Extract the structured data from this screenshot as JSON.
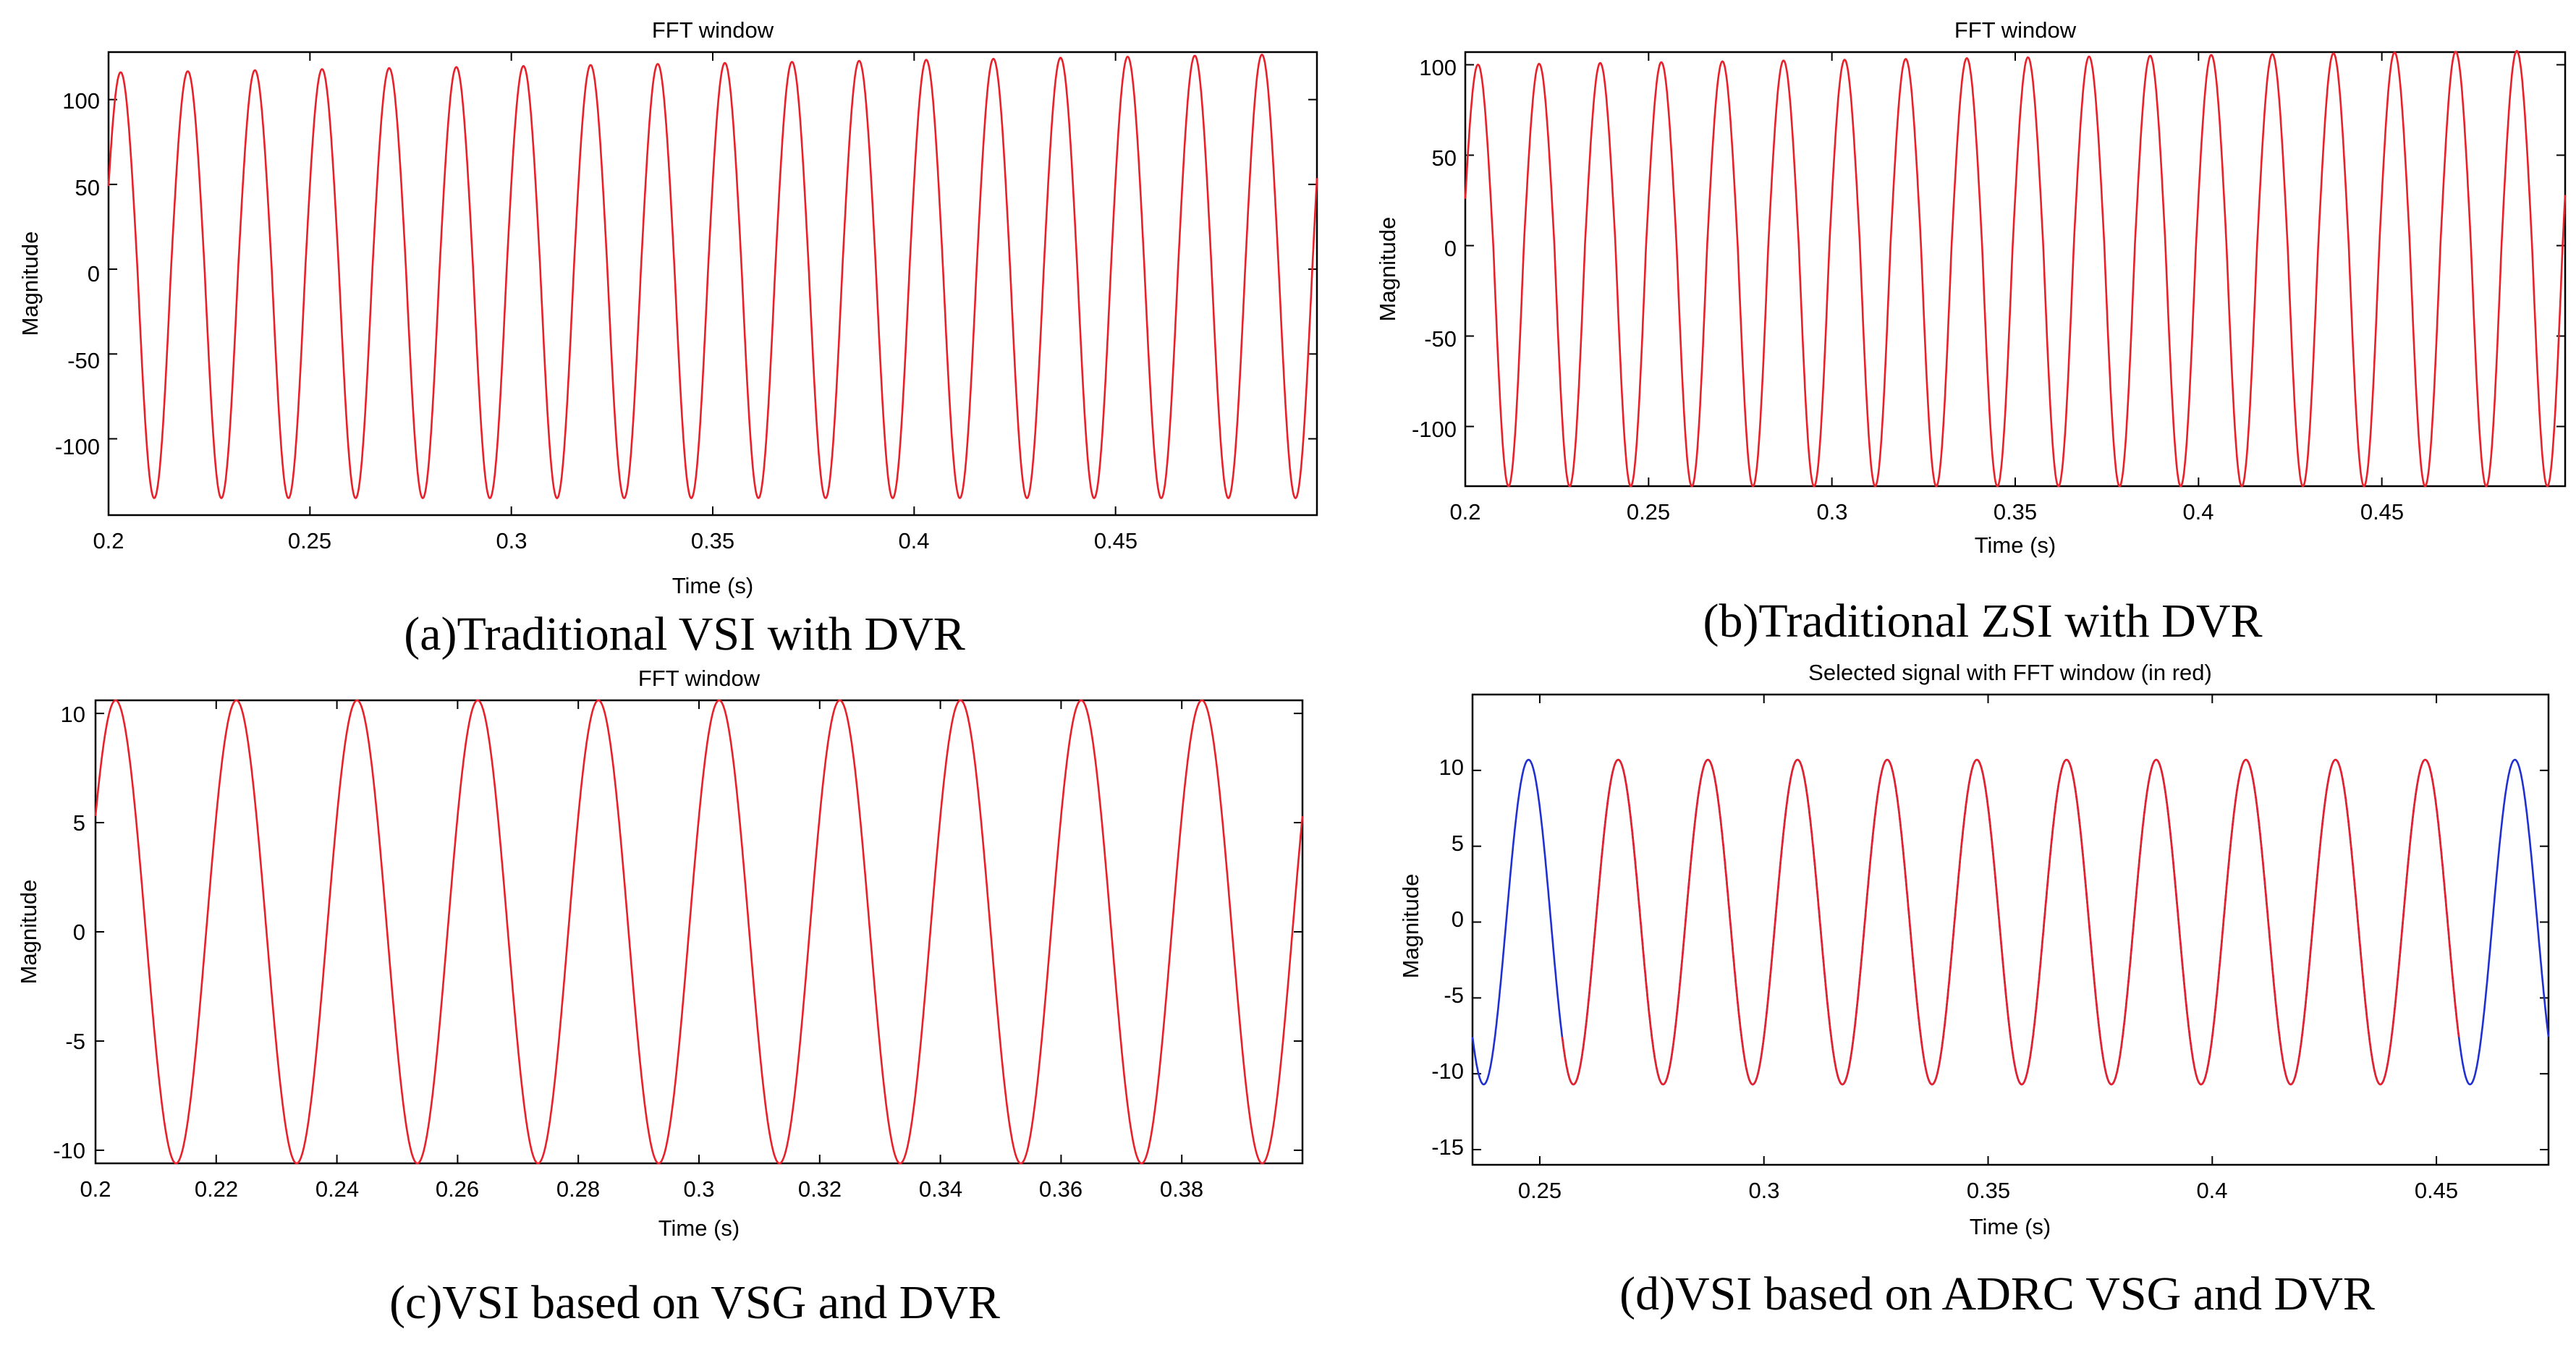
{
  "colors": {
    "window": "#e8202a",
    "outside": "#1f2fd1"
  },
  "chart_data": [
    {
      "type": "line",
      "title": "FFT window",
      "xlabel": "Time (s)",
      "ylabel": "Magnitude",
      "caption": "(a)Traditional VSI with DVR",
      "xlim": [
        0.2,
        0.5
      ],
      "ylim": [
        -145,
        128
      ],
      "xticks": [
        0.2,
        0.25,
        0.3,
        0.35,
        0.4,
        0.45
      ],
      "xtick_labels": [
        "0.2",
        "0.25",
        "0.3",
        "0.35",
        "0.4",
        "0.45"
      ],
      "yticks": [
        100,
        50,
        0,
        -50,
        -100
      ],
      "ytick_labels": [
        "100",
        "50",
        "0",
        "-50",
        "-100"
      ],
      "series": [
        {
          "name": "FFT window",
          "color": "#e8202a",
          "frequency_hz": 60,
          "amplitude_start": 116,
          "amplitude_end": 127,
          "negative_peak": -135,
          "phase_deg": 25,
          "x_range": [
            0.2,
            0.5
          ]
        }
      ]
    },
    {
      "type": "line",
      "title": "FFT window",
      "xlabel": "Time (s)",
      "ylabel": "Magnitude",
      "caption": "(b)Traditional ZSI with DVR",
      "xlim": [
        0.2,
        0.5
      ],
      "ylim": [
        -133,
        107
      ],
      "xticks": [
        0.2,
        0.25,
        0.3,
        0.35,
        0.4,
        0.45
      ],
      "xtick_labels": [
        "0.2",
        "0.25",
        "0.3",
        "0.35",
        "0.4",
        "0.45"
      ],
      "yticks": [
        100,
        50,
        0,
        -50,
        -100
      ],
      "ytick_labels": [
        "100",
        "50",
        "0",
        "-50",
        "-100"
      ],
      "series": [
        {
          "name": "FFT window",
          "color": "#e8202a",
          "frequency_hz": 60,
          "amplitude_start": 100,
          "amplitude_end": 108,
          "negative_peak": -133,
          "phase_deg": 15,
          "x_range": [
            0.2,
            0.5
          ]
        }
      ]
    },
    {
      "type": "line",
      "title": "FFT window",
      "xlabel": "Time (s)",
      "ylabel": "Magnitude",
      "caption": "(c)VSI based on VSG and DVR",
      "xlim": [
        0.2,
        0.4
      ],
      "ylim": [
        -10.6,
        10.6
      ],
      "xticks": [
        0.2,
        0.22,
        0.24,
        0.26,
        0.28,
        0.3,
        0.32,
        0.34,
        0.36,
        0.38
      ],
      "xtick_labels": [
        "0.2",
        "0.22",
        "0.24",
        "0.26",
        "0.28",
        "0.3",
        "0.32",
        "0.34",
        "0.36",
        "0.38"
      ],
      "yticks": [
        10,
        5,
        0,
        -5,
        -10
      ],
      "ytick_labels": [
        "10",
        "5",
        "0",
        "-5",
        "-10"
      ],
      "series": [
        {
          "name": "FFT window",
          "color": "#e8202a",
          "frequency_hz": 50,
          "amplitude_start": 10.6,
          "amplitude_end": 10.6,
          "negative_peak": -10.6,
          "phase_deg": 30,
          "x_range": [
            0.2,
            0.4
          ]
        }
      ]
    },
    {
      "type": "line",
      "title": "Selected signal with FFT window (in red)",
      "xlabel": "Time (s)",
      "ylabel": "Magnitude",
      "caption": "(d)VSI based on ADRC VSG and DVR",
      "xlim": [
        0.235,
        0.475
      ],
      "ylim": [
        -16,
        15
      ],
      "xticks": [
        0.25,
        0.3,
        0.35,
        0.4,
        0.45
      ],
      "xtick_labels": [
        "0.25",
        "0.3",
        "0.35",
        "0.4",
        "0.45"
      ],
      "yticks": [
        10,
        5,
        0,
        -5,
        -10,
        -15
      ],
      "ytick_labels": [
        "10",
        "5",
        "0",
        "-5",
        "-10",
        "-15"
      ],
      "series": [
        {
          "name": "Selected signal",
          "color": "#1f2fd1",
          "frequency_hz": 50,
          "amplitude_start": 10.7,
          "amplitude_end": 10.7,
          "negative_peak": -10.7,
          "phase_deg": -135,
          "x_range": [
            0.235,
            0.475
          ]
        },
        {
          "name": "FFT window",
          "color": "#e8202a",
          "frequency_hz": 50,
          "amplitude_start": 10.7,
          "amplitude_end": 10.7,
          "negative_peak": -10.7,
          "phase_deg": -135,
          "x_range": [
            0.255,
            0.455
          ]
        }
      ]
    }
  ]
}
